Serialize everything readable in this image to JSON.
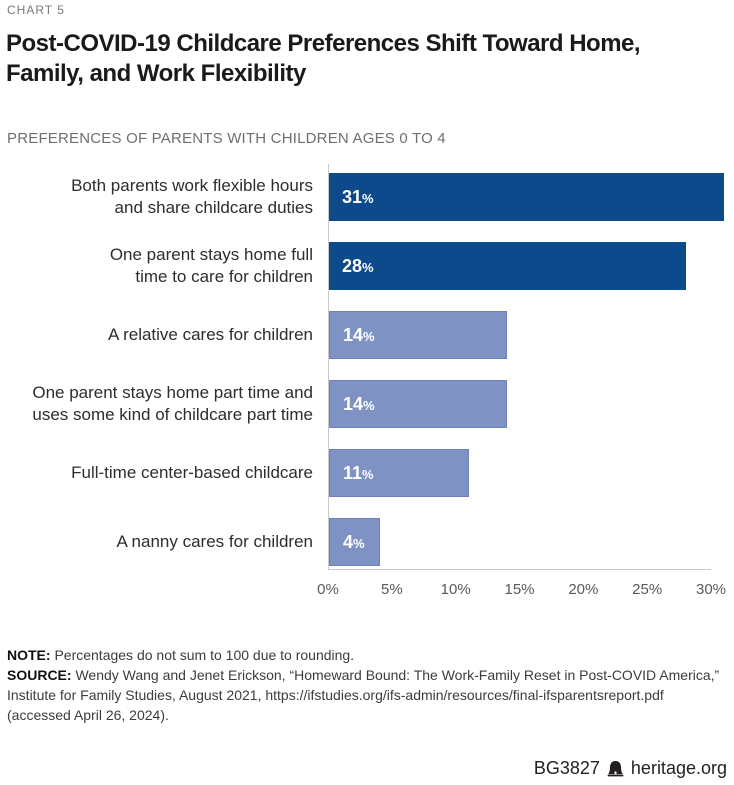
{
  "header": {
    "eyebrow": "CHART 5",
    "title_lines": [
      "Post-COVID-19 Childcare Preferences Shift Toward Home,",
      "Family, and Work Flexibility"
    ],
    "subtitle": "PREFERENCES OF PARENTS WITH CHILDREN AGES 0 TO 4"
  },
  "chart_data": {
    "type": "bar",
    "orientation": "horizontal",
    "title": "Post-COVID-19 Childcare Preferences Shift Toward Home, Family, and Work Flexibility",
    "subtitle": "PREFERENCES OF PARENTS WITH CHILDREN AGES 0 TO 4",
    "categories": [
      "Both parents work flexible hours and share childcare duties",
      "One parent stays home full time to care for children",
      "A relative cares for children",
      "One parent stays home part time and uses some kind of childcare part time",
      "Full-time center-based childcare",
      "A nanny cares for children"
    ],
    "category_lines": [
      [
        "Both parents work flexible hours",
        "and share childcare duties"
      ],
      [
        "One parent stays home full",
        "time to care for children"
      ],
      [
        "A relative cares for children"
      ],
      [
        "One parent stays home part time and",
        "uses some kind of childcare part time"
      ],
      [
        "Full-time center-based childcare"
      ],
      [
        "A nanny cares for children"
      ]
    ],
    "values": [
      31,
      28,
      14,
      14,
      11,
      4
    ],
    "value_labels": [
      "31%",
      "28%",
      "14%",
      "14%",
      "11%",
      "4%"
    ],
    "bar_colors": [
      "#0d4a8b",
      "#0d4a8b",
      "#7e92c3",
      "#7e92c3",
      "#7e92c3",
      "#7e92c3"
    ],
    "xlim": [
      0,
      30
    ],
    "x_ticks": [
      "0%",
      "5%",
      "10%",
      "15%",
      "20%",
      "25%",
      "30%"
    ],
    "grid": false,
    "legend": false,
    "colors": {
      "bar_dark": "#0d4a8b",
      "bar_light": "#7e92c3",
      "axis_line": "#c9c9c9",
      "tick_text": "#58595b",
      "value_label_text": "#ffffff"
    }
  },
  "notes": {
    "note_label": "NOTE:",
    "note_text": "Percentages do not sum to 100 due to rounding.",
    "source_label": "SOURCE:",
    "source_lines": [
      "Wendy Wang and Jenet Erickson, “Homeward Bound: The Work-Family Reset in Post-COVID America,”",
      "Institute for Family Studies, August 2021, https://ifstudies.org/ifs-admin/resources/final-ifsparentsreport.pdf",
      "(accessed April 26, 2024)."
    ]
  },
  "footer": {
    "doc_id": "BG3827",
    "icon": "liberty-bell-icon",
    "site_label": "heritage.org"
  }
}
